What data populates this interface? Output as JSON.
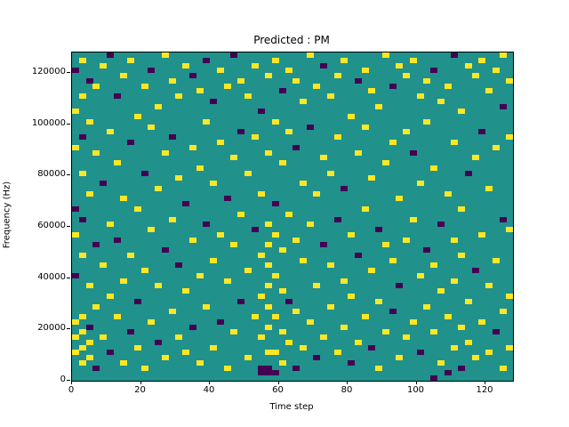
{
  "figure": {
    "title": "Predicted : PM",
    "xlabel": "Time step",
    "ylabel": "Frequency (Hz)"
  },
  "chart_data": {
    "type": "heatmap",
    "title": "Predicted : PM",
    "xlabel": "Time step",
    "ylabel": "Frequency (Hz)",
    "xlim": [
      0,
      128
    ],
    "ylim": [
      0,
      128000
    ],
    "xticks": [
      0,
      20,
      40,
      60,
      80,
      100,
      120
    ],
    "yticks": [
      0,
      20000,
      40000,
      60000,
      80000,
      100000,
      120000
    ],
    "grid_cols": 64,
    "grid_rows": 64,
    "legend": "none",
    "colors": {
      "background": "#21918c",
      "high": "#fde725",
      "low": "#440154"
    },
    "value_legend": {
      "1": "high (yellow)",
      "2": "low (dark)"
    },
    "cells": [
      [
        0,
        5,
        1
      ],
      [
        0,
        8,
        1
      ],
      [
        0,
        11,
        1
      ],
      [
        0,
        20,
        2
      ],
      [
        0,
        28,
        1
      ],
      [
        0,
        33,
        2
      ],
      [
        0,
        45,
        1
      ],
      [
        0,
        52,
        1
      ],
      [
        0,
        60,
        2
      ],
      [
        1,
        3,
        1
      ],
      [
        1,
        6,
        1
      ],
      [
        1,
        9,
        1
      ],
      [
        1,
        12,
        1
      ],
      [
        1,
        24,
        1
      ],
      [
        1,
        31,
        2
      ],
      [
        1,
        40,
        1
      ],
      [
        1,
        47,
        2
      ],
      [
        1,
        55,
        1
      ],
      [
        1,
        62,
        1
      ],
      [
        2,
        4,
        1
      ],
      [
        2,
        7,
        1
      ],
      [
        2,
        10,
        2
      ],
      [
        2,
        18,
        1
      ],
      [
        2,
        36,
        1
      ],
      [
        2,
        50,
        1
      ],
      [
        2,
        58,
        2
      ],
      [
        3,
        2,
        2
      ],
      [
        3,
        14,
        1
      ],
      [
        3,
        26,
        2
      ],
      [
        3,
        44,
        1
      ],
      [
        3,
        57,
        1
      ],
      [
        4,
        8,
        1
      ],
      [
        4,
        22,
        1
      ],
      [
        4,
        38,
        2
      ],
      [
        4,
        61,
        1
      ],
      [
        5,
        5,
        2
      ],
      [
        5,
        16,
        1
      ],
      [
        5,
        30,
        1
      ],
      [
        5,
        48,
        1
      ],
      [
        5,
        63,
        2
      ],
      [
        6,
        12,
        1
      ],
      [
        6,
        27,
        2
      ],
      [
        6,
        42,
        1
      ],
      [
        6,
        55,
        2
      ],
      [
        7,
        3,
        1
      ],
      [
        7,
        19,
        1
      ],
      [
        7,
        35,
        1
      ],
      [
        7,
        59,
        1
      ],
      [
        8,
        9,
        2
      ],
      [
        8,
        24,
        1
      ],
      [
        8,
        46,
        2
      ],
      [
        8,
        62,
        1
      ],
      [
        9,
        6,
        1
      ],
      [
        9,
        15,
        2
      ],
      [
        9,
        33,
        1
      ],
      [
        9,
        51,
        1
      ],
      [
        10,
        2,
        1
      ],
      [
        10,
        21,
        1
      ],
      [
        10,
        40,
        2
      ],
      [
        10,
        57,
        1
      ],
      [
        11,
        11,
        1
      ],
      [
        11,
        29,
        1
      ],
      [
        11,
        49,
        1
      ],
      [
        11,
        60,
        2
      ],
      [
        12,
        7,
        2
      ],
      [
        12,
        18,
        1
      ],
      [
        12,
        37,
        1
      ],
      [
        12,
        53,
        1
      ],
      [
        13,
        4,
        1
      ],
      [
        13,
        25,
        2
      ],
      [
        13,
        44,
        1
      ],
      [
        13,
        63,
        1
      ],
      [
        14,
        13,
        1
      ],
      [
        14,
        31,
        1
      ],
      [
        14,
        47,
        2
      ],
      [
        14,
        58,
        1
      ],
      [
        15,
        8,
        1
      ],
      [
        15,
        22,
        2
      ],
      [
        15,
        39,
        1
      ],
      [
        15,
        55,
        1
      ],
      [
        16,
        5,
        1
      ],
      [
        16,
        17,
        1
      ],
      [
        16,
        34,
        2
      ],
      [
        16,
        61,
        1
      ],
      [
        17,
        10,
        2
      ],
      [
        17,
        27,
        1
      ],
      [
        17,
        45,
        1
      ],
      [
        17,
        59,
        2
      ],
      [
        18,
        3,
        1
      ],
      [
        18,
        20,
        1
      ],
      [
        18,
        41,
        1
      ],
      [
        18,
        56,
        1
      ],
      [
        19,
        14,
        1
      ],
      [
        19,
        30,
        2
      ],
      [
        19,
        50,
        1
      ],
      [
        19,
        62,
        2
      ],
      [
        20,
        6,
        1
      ],
      [
        20,
        23,
        1
      ],
      [
        20,
        38,
        1
      ],
      [
        20,
        54,
        2
      ],
      [
        21,
        11,
        2
      ],
      [
        21,
        28,
        1
      ],
      [
        21,
        46,
        1
      ],
      [
        21,
        60,
        1
      ],
      [
        22,
        2,
        1
      ],
      [
        22,
        19,
        1
      ],
      [
        22,
        35,
        2
      ],
      [
        22,
        57,
        1
      ],
      [
        23,
        9,
        1
      ],
      [
        23,
        26,
        1
      ],
      [
        23,
        43,
        1
      ],
      [
        23,
        63,
        2
      ],
      [
        24,
        15,
        2
      ],
      [
        24,
        32,
        1
      ],
      [
        24,
        48,
        2
      ],
      [
        24,
        58,
        1
      ],
      [
        25,
        4,
        1
      ],
      [
        25,
        21,
        1
      ],
      [
        25,
        40,
        1
      ],
      [
        25,
        55,
        1
      ],
      [
        26,
        12,
        1
      ],
      [
        26,
        29,
        2
      ],
      [
        26,
        47,
        1
      ],
      [
        26,
        61,
        1
      ],
      [
        27,
        1,
        2
      ],
      [
        27,
        2,
        2
      ],
      [
        27,
        8,
        1
      ],
      [
        27,
        16,
        1
      ],
      [
        27,
        24,
        1
      ],
      [
        27,
        36,
        1
      ],
      [
        27,
        52,
        2
      ],
      [
        28,
        1,
        2
      ],
      [
        28,
        2,
        2
      ],
      [
        28,
        5,
        1
      ],
      [
        28,
        10,
        1
      ],
      [
        28,
        14,
        1
      ],
      [
        28,
        18,
        1
      ],
      [
        28,
        22,
        1
      ],
      [
        28,
        26,
        1
      ],
      [
        28,
        30,
        1
      ],
      [
        28,
        44,
        1
      ],
      [
        28,
        59,
        1
      ],
      [
        29,
        1,
        2
      ],
      [
        29,
        5,
        1
      ],
      [
        29,
        12,
        1
      ],
      [
        29,
        20,
        1
      ],
      [
        29,
        28,
        1
      ],
      [
        29,
        34,
        2
      ],
      [
        29,
        50,
        1
      ],
      [
        29,
        62,
        1
      ],
      [
        30,
        3,
        1
      ],
      [
        30,
        9,
        1
      ],
      [
        30,
        17,
        1
      ],
      [
        30,
        25,
        1
      ],
      [
        30,
        42,
        1
      ],
      [
        30,
        56,
        2
      ],
      [
        31,
        7,
        1
      ],
      [
        31,
        15,
        2
      ],
      [
        31,
        32,
        1
      ],
      [
        31,
        48,
        1
      ],
      [
        31,
        60,
        1
      ],
      [
        32,
        2,
        2
      ],
      [
        32,
        13,
        1
      ],
      [
        32,
        27,
        1
      ],
      [
        32,
        45,
        2
      ],
      [
        32,
        58,
        1
      ],
      [
        33,
        6,
        1
      ],
      [
        33,
        23,
        1
      ],
      [
        33,
        38,
        1
      ],
      [
        33,
        54,
        1
      ],
      [
        34,
        11,
        1
      ],
      [
        34,
        30,
        1
      ],
      [
        34,
        49,
        2
      ],
      [
        34,
        63,
        1
      ],
      [
        35,
        4,
        2
      ],
      [
        35,
        18,
        1
      ],
      [
        35,
        36,
        1
      ],
      [
        35,
        57,
        1
      ],
      [
        36,
        8,
        1
      ],
      [
        36,
        26,
        2
      ],
      [
        36,
        43,
        1
      ],
      [
        36,
        61,
        2
      ],
      [
        37,
        14,
        1
      ],
      [
        37,
        22,
        1
      ],
      [
        37,
        40,
        1
      ],
      [
        37,
        55,
        1
      ],
      [
        38,
        5,
        1
      ],
      [
        38,
        31,
        2
      ],
      [
        38,
        47,
        1
      ],
      [
        38,
        59,
        1
      ],
      [
        39,
        10,
        1
      ],
      [
        39,
        19,
        1
      ],
      [
        39,
        37,
        2
      ],
      [
        39,
        62,
        1
      ],
      [
        40,
        3,
        2
      ],
      [
        40,
        16,
        1
      ],
      [
        40,
        28,
        1
      ],
      [
        40,
        51,
        1
      ],
      [
        41,
        7,
        1
      ],
      [
        41,
        24,
        2
      ],
      [
        41,
        44,
        1
      ],
      [
        41,
        58,
        2
      ],
      [
        42,
        12,
        1
      ],
      [
        42,
        33,
        1
      ],
      [
        42,
        49,
        1
      ],
      [
        42,
        60,
        1
      ],
      [
        43,
        6,
        2
      ],
      [
        43,
        21,
        1
      ],
      [
        43,
        39,
        1
      ],
      [
        43,
        56,
        1
      ],
      [
        44,
        2,
        1
      ],
      [
        44,
        15,
        1
      ],
      [
        44,
        29,
        2
      ],
      [
        44,
        53,
        1
      ],
      [
        45,
        9,
        1
      ],
      [
        45,
        26,
        1
      ],
      [
        45,
        42,
        1
      ],
      [
        45,
        63,
        1
      ],
      [
        46,
        13,
        2
      ],
      [
        46,
        23,
        1
      ],
      [
        46,
        46,
        1
      ],
      [
        46,
        57,
        2
      ],
      [
        47,
        4,
        1
      ],
      [
        47,
        18,
        2
      ],
      [
        47,
        35,
        1
      ],
      [
        47,
        61,
        1
      ],
      [
        48,
        8,
        1
      ],
      [
        48,
        27,
        1
      ],
      [
        48,
        48,
        1
      ],
      [
        48,
        59,
        1
      ],
      [
        49,
        11,
        1
      ],
      [
        49,
        31,
        1
      ],
      [
        49,
        44,
        2
      ],
      [
        49,
        62,
        1
      ],
      [
        50,
        5,
        2
      ],
      [
        50,
        20,
        1
      ],
      [
        50,
        38,
        1
      ],
      [
        50,
        55,
        1
      ],
      [
        51,
        14,
        1
      ],
      [
        51,
        25,
        2
      ],
      [
        51,
        50,
        1
      ],
      [
        51,
        58,
        1
      ],
      [
        52,
        0,
        2
      ],
      [
        52,
        9,
        1
      ],
      [
        52,
        22,
        1
      ],
      [
        52,
        41,
        1
      ],
      [
        52,
        60,
        2
      ],
      [
        53,
        3,
        1
      ],
      [
        53,
        17,
        1
      ],
      [
        53,
        30,
        2
      ],
      [
        53,
        54,
        1
      ],
      [
        54,
        1,
        2
      ],
      [
        54,
        12,
        1
      ],
      [
        54,
        36,
        1
      ],
      [
        54,
        57,
        1
      ],
      [
        55,
        6,
        1
      ],
      [
        55,
        19,
        1
      ],
      [
        55,
        27,
        1
      ],
      [
        55,
        46,
        1
      ],
      [
        55,
        63,
        2
      ],
      [
        56,
        2,
        2
      ],
      [
        56,
        10,
        1
      ],
      [
        56,
        24,
        1
      ],
      [
        56,
        33,
        1
      ],
      [
        56,
        52,
        1
      ],
      [
        57,
        7,
        1
      ],
      [
        57,
        15,
        1
      ],
      [
        57,
        40,
        2
      ],
      [
        57,
        61,
        1
      ],
      [
        58,
        4,
        1
      ],
      [
        58,
        21,
        2
      ],
      [
        58,
        43,
        1
      ],
      [
        58,
        59,
        1
      ],
      [
        59,
        11,
        1
      ],
      [
        59,
        28,
        1
      ],
      [
        59,
        48,
        2
      ],
      [
        59,
        62,
        1
      ],
      [
        60,
        5,
        1
      ],
      [
        60,
        18,
        1
      ],
      [
        60,
        37,
        1
      ],
      [
        60,
        56,
        1
      ],
      [
        61,
        9,
        2
      ],
      [
        61,
        23,
        1
      ],
      [
        61,
        45,
        1
      ],
      [
        61,
        60,
        1
      ],
      [
        62,
        2,
        1
      ],
      [
        62,
        13,
        1
      ],
      [
        62,
        31,
        2
      ],
      [
        62,
        53,
        2
      ],
      [
        62,
        63,
        1
      ],
      [
        63,
        6,
        1
      ],
      [
        63,
        16,
        1
      ],
      [
        63,
        29,
        1
      ],
      [
        63,
        47,
        1
      ],
      [
        63,
        58,
        1
      ]
    ]
  }
}
